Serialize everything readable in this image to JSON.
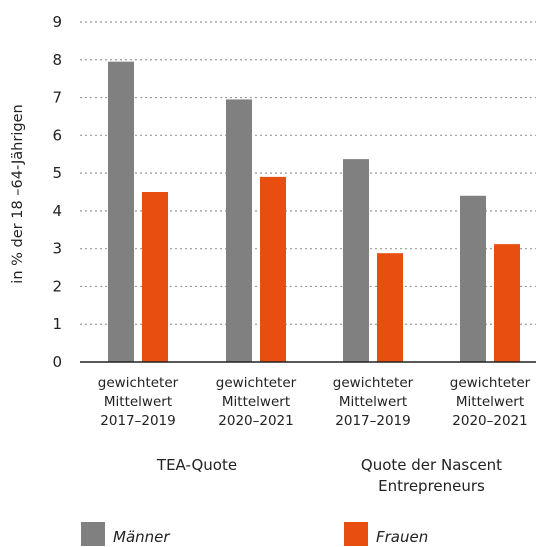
{
  "chart_data": {
    "type": "bar",
    "ylabel": "in % der 18 –64-Jährigen",
    "ylim": [
      0,
      9
    ],
    "yticks": [
      0,
      1,
      2,
      3,
      4,
      5,
      6,
      7,
      8,
      9
    ],
    "grid": true,
    "legend_placement": "bottom",
    "categories": [
      [
        "gewichteter",
        "Mittelwert",
        "2017–2019"
      ],
      [
        "gewichteter",
        "Mittelwert",
        "2020–2021"
      ],
      [
        "gewichteter",
        "Mittelwert",
        "2017–2019"
      ],
      [
        "gewichteter",
        "Mittelwert",
        "2020–2021"
      ]
    ],
    "groups": [
      {
        "label": [
          "TEA-Quote"
        ],
        "categories": [
          0,
          1
        ]
      },
      {
        "label": [
          "Quote der Nascent",
          "Entrepreneurs"
        ],
        "categories": [
          2,
          3
        ]
      }
    ],
    "series": [
      {
        "name": "Männer",
        "color": "#808080",
        "values": [
          7.95,
          6.95,
          5.37,
          4.4
        ]
      },
      {
        "name": "Frauen",
        "color": "#e84e0f",
        "values": [
          4.5,
          4.9,
          2.88,
          3.12
        ]
      }
    ]
  }
}
